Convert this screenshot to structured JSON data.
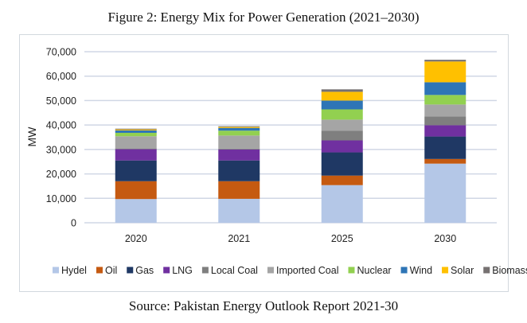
{
  "figure_title": "Figure 2: Energy Mix for Power Generation (2021–2030)",
  "source_text": "Source: Pakistan Energy Outlook Report 2021-30",
  "chart_data": {
    "type": "bar",
    "stacked": true,
    "title": "Figure 2: Energy Mix for Power Generation (2021–2030)",
    "xlabel": "",
    "ylabel": "MW",
    "ylim": [
      0,
      70000
    ],
    "yticks": [
      0,
      10000,
      20000,
      30000,
      40000,
      50000,
      60000,
      70000
    ],
    "ytick_labels": [
      "0",
      "10,000",
      "20,000",
      "30,000",
      "40,000",
      "50,000",
      "60,000",
      "70,000"
    ],
    "grid": true,
    "legend_position": "bottom",
    "categories": [
      "2020",
      "2021",
      "2025",
      "2030"
    ],
    "series": [
      {
        "name": "Hydel",
        "color": "#B4C7E7",
        "values": [
          9700,
          9800,
          15400,
          24200
        ]
      },
      {
        "name": "Oil",
        "color": "#C55A11",
        "values": [
          7300,
          7200,
          3900,
          1900
        ]
      },
      {
        "name": "Gas",
        "color": "#1F3864",
        "values": [
          8500,
          8500,
          9500,
          9200
        ]
      },
      {
        "name": "LNG",
        "color": "#7030A0",
        "values": [
          4600,
          4500,
          4900,
          4600
        ]
      },
      {
        "name": "Local Coal",
        "color": "#7F7F7F",
        "values": [
          300,
          300,
          3900,
          3600
        ]
      },
      {
        "name": "Imported Coal",
        "color": "#A5A5A5",
        "values": [
          5000,
          5400,
          4600,
          4900
        ]
      },
      {
        "name": "Nuclear",
        "color": "#92D050",
        "values": [
          1400,
          2000,
          4200,
          3900
        ]
      },
      {
        "name": "Wind",
        "color": "#2E75B6",
        "values": [
          1000,
          1100,
          3600,
          5200
        ]
      },
      {
        "name": "Solar",
        "color": "#FFC000",
        "values": [
          400,
          400,
          3600,
          8500
        ]
      },
      {
        "name": "Biomass",
        "color": "#767171",
        "values": [
          300,
          300,
          1000,
          700
        ]
      }
    ]
  }
}
